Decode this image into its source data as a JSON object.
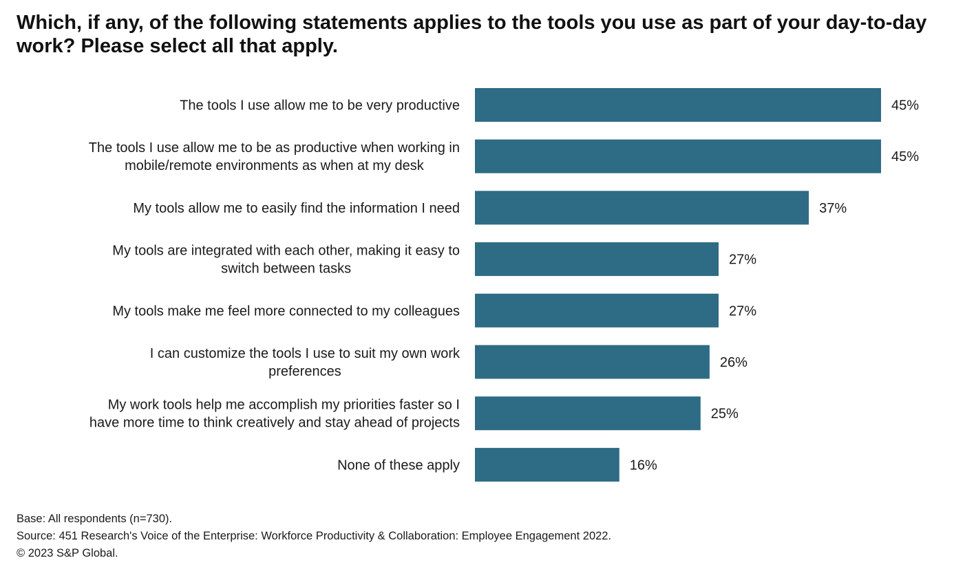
{
  "chart_data": {
    "type": "bar",
    "orientation": "horizontal",
    "title": "Which, if any, of the following statements applies to the tools you use as part of your day-to-day work? Please select all that apply.",
    "categories": [
      [
        "The tools I use allow me to be very productive"
      ],
      [
        "The tools I use allow me to be as productive when working in",
        "mobile/remote environments as when at my desk"
      ],
      [
        "My tools allow me to easily find the information I need"
      ],
      [
        "My tools are integrated with each other, making it easy to",
        "switch between tasks"
      ],
      [
        "My tools make me feel more connected to my colleagues"
      ],
      [
        "I can customize the tools I use to suit my own work",
        "preferences"
      ],
      [
        "My work tools help me accomplish my priorities faster so I",
        "have more time to think creatively and stay ahead of projects"
      ],
      [
        "None of these apply"
      ]
    ],
    "values": [
      45,
      45,
      37,
      27,
      27,
      26,
      25,
      16
    ],
    "value_labels": [
      "45%",
      "45%",
      "37%",
      "27%",
      "27%",
      "26%",
      "25%",
      "16%"
    ],
    "bar_color": "#2e6b85",
    "xlim": [
      0,
      45
    ],
    "grid": false,
    "xlabel": "",
    "ylabel": ""
  },
  "footer": {
    "base": "Base: All respondents (n=730).",
    "source": "Source: 451 Research's Voice of the Enterprise: Workforce Productivity & Collaboration: Employee Engagement 2022.",
    "copyright": "© 2023 S&P Global."
  }
}
